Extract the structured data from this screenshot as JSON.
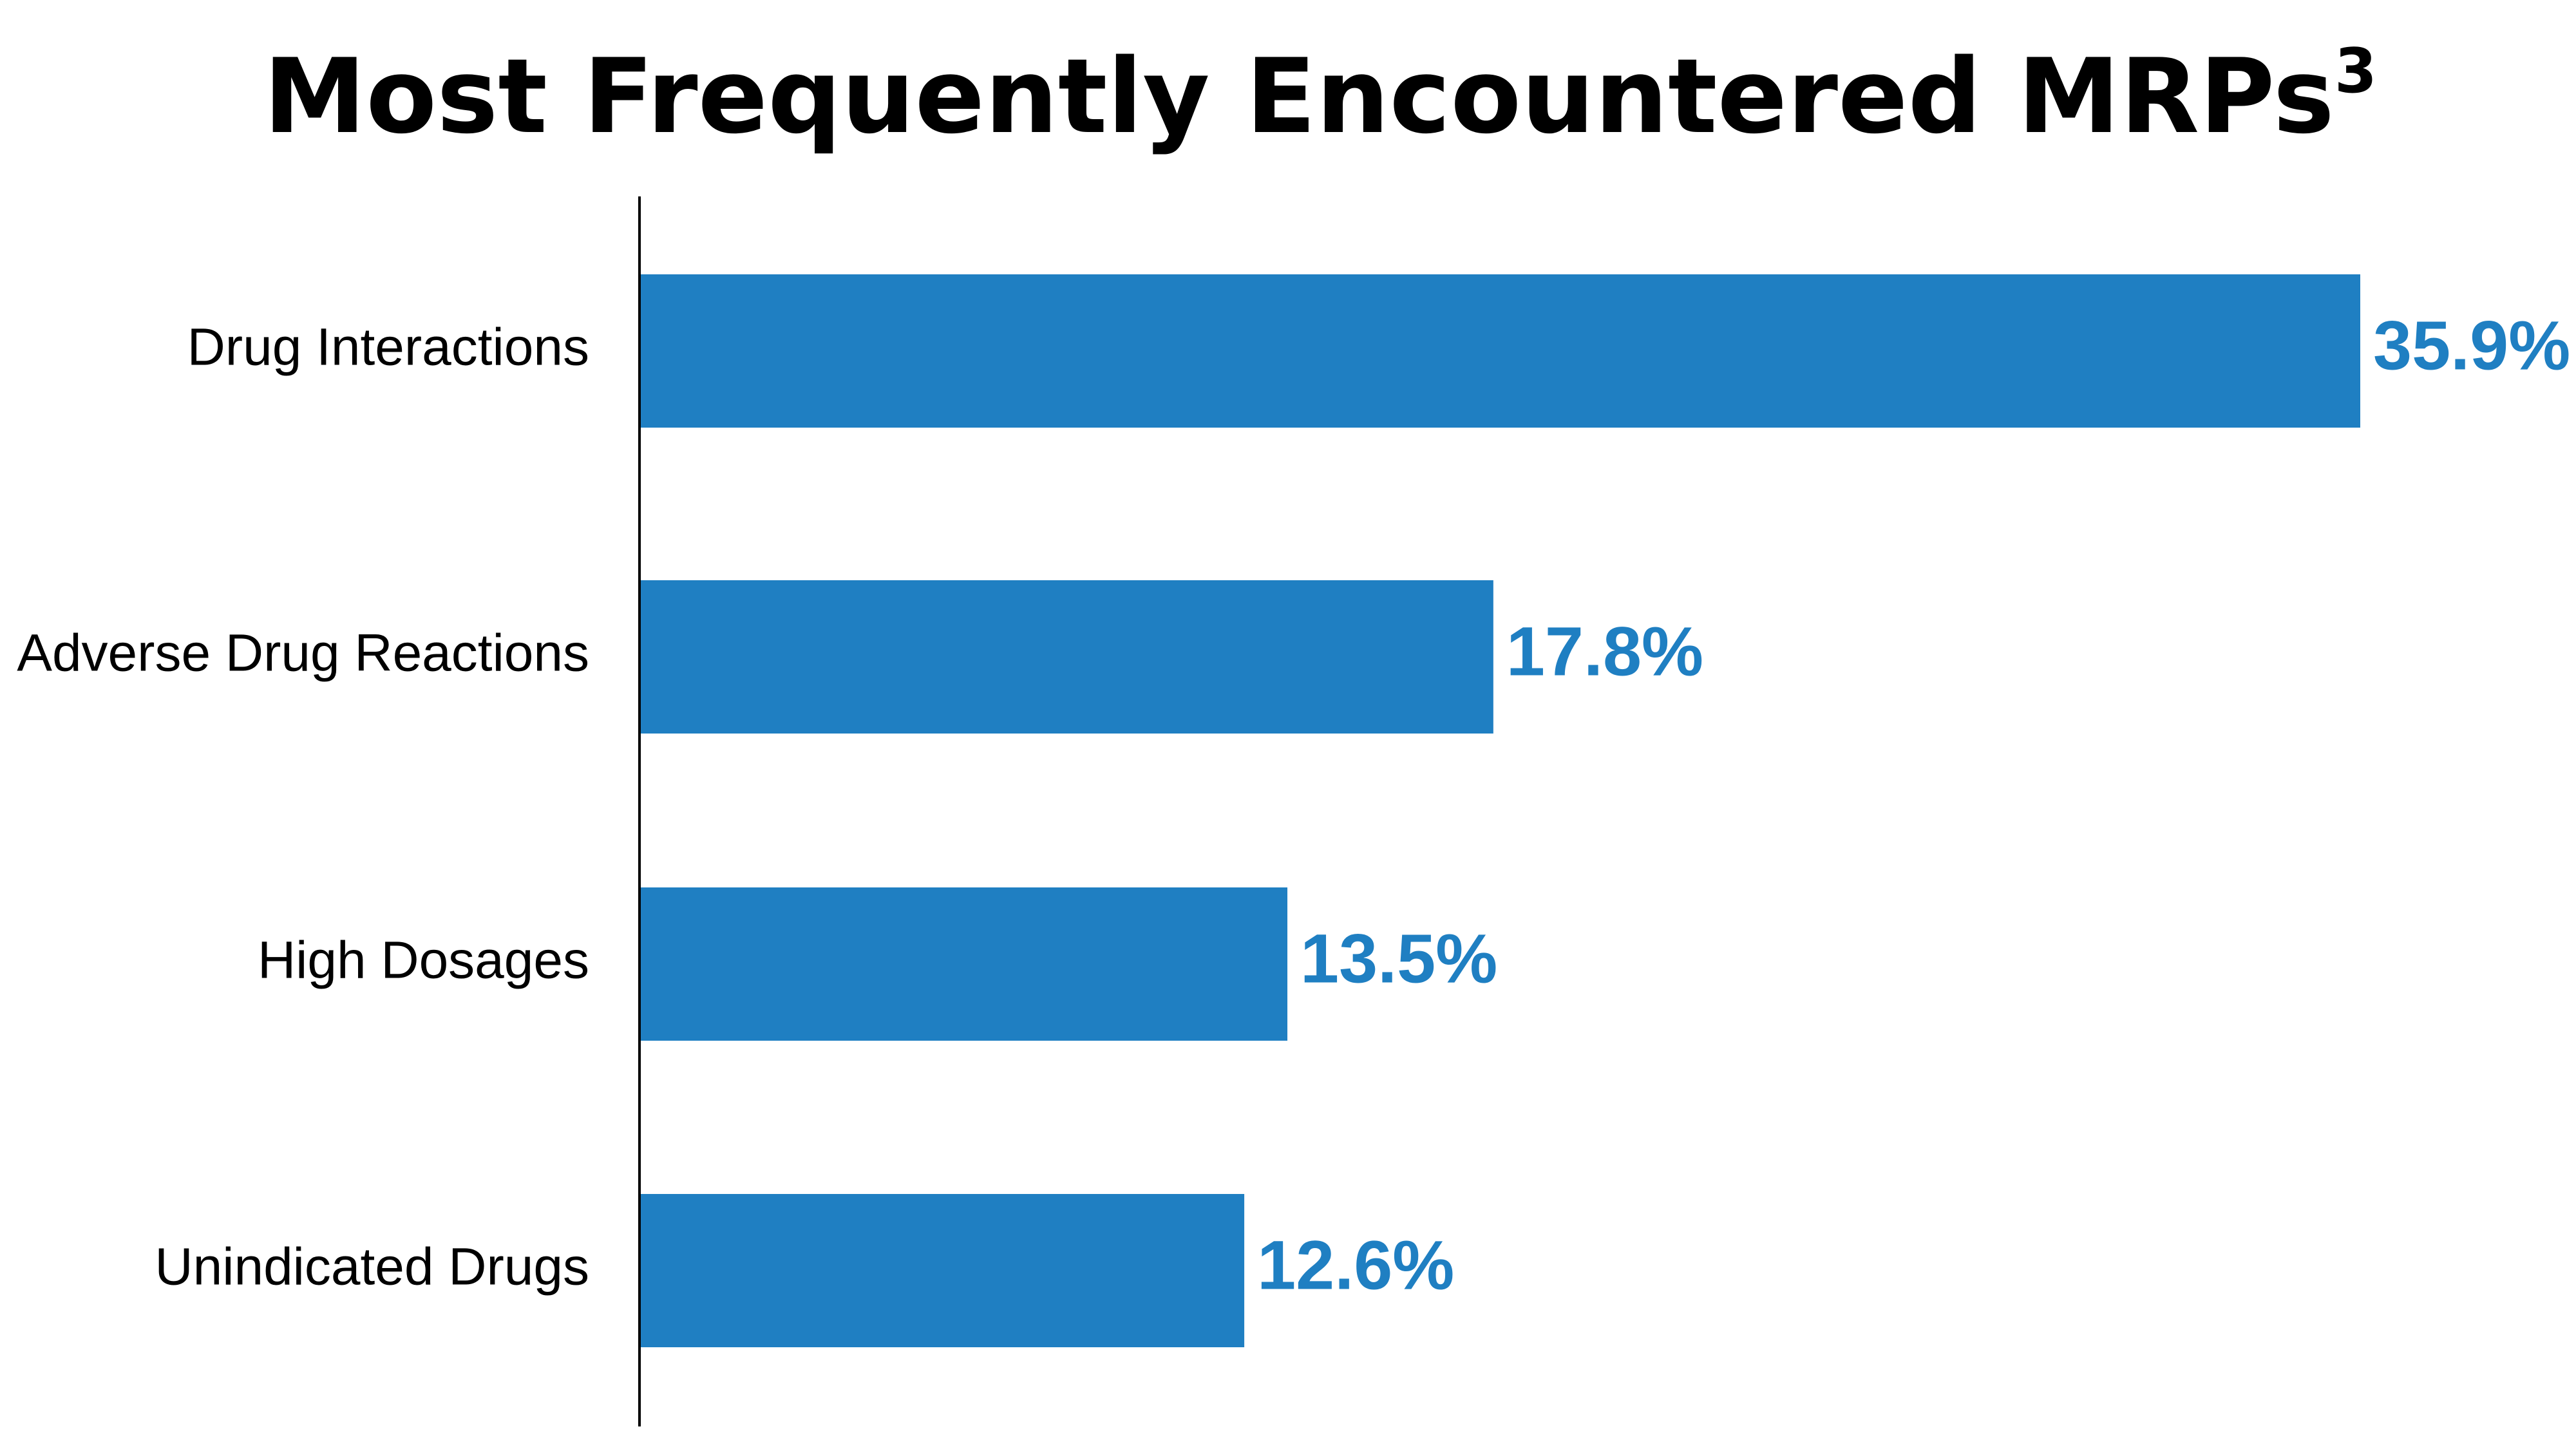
{
  "chart_data": {
    "type": "bar",
    "orientation": "horizontal",
    "title": "Most Frequently Encountered MRPs",
    "title_superscript": "3",
    "categories": [
      "Drug Interactions",
      "Adverse Drug Reactions",
      "High Dosages",
      "Unindicated Drugs"
    ],
    "values": [
      35.9,
      17.8,
      13.5,
      12.6
    ],
    "value_labels": [
      "35.9%",
      "17.8%",
      "13.5%",
      "12.6%"
    ],
    "xlim": [
      0,
      35.9
    ],
    "grid": false,
    "legend": "none",
    "bar_color": "#1f7fc2",
    "value_label_color": "#1f7fc2",
    "axis_color": "#000000"
  }
}
